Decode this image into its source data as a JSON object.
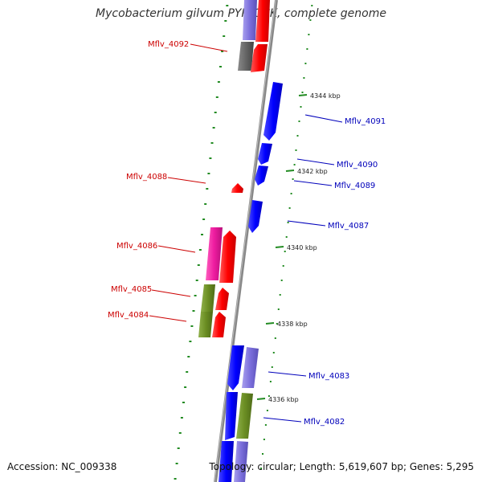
{
  "title": "Mycobacterium gilvum PYR-GCK, complete genome",
  "accession": "Accession: NC_009338",
  "summary": "Topology: circular; Length: 5,619,607 bp; Genes: 5,295",
  "colors": {
    "forward_label": "#cc0000",
    "reverse_label": "#0000bb",
    "backbone": "#888888",
    "gc_skew": "#228b22"
  },
  "ticks": [
    {
      "label": "4344 kbp",
      "kbp": 4344
    },
    {
      "label": "4342 kbp",
      "kbp": 4342
    },
    {
      "label": "4340 kbp",
      "kbp": 4340
    },
    {
      "label": "4338 kbp",
      "kbp": 4338
    },
    {
      "label": "4336 kbp",
      "kbp": 4336
    }
  ],
  "gene_labels": [
    {
      "name": "Mflv_4092",
      "strand": "forward"
    },
    {
      "name": "Mflv_4091",
      "strand": "reverse"
    },
    {
      "name": "Mflv_4090",
      "strand": "reverse"
    },
    {
      "name": "Mflv_4089",
      "strand": "reverse"
    },
    {
      "name": "Mflv_4088",
      "strand": "forward"
    },
    {
      "name": "Mflv_4087",
      "strand": "reverse"
    },
    {
      "name": "Mflv_4086",
      "strand": "forward"
    },
    {
      "name": "Mflv_4085",
      "strand": "forward"
    },
    {
      "name": "Mflv_4084",
      "strand": "forward"
    },
    {
      "name": "Mflv_4083",
      "strand": "reverse"
    },
    {
      "name": "Mflv_4082",
      "strand": "reverse"
    }
  ]
}
